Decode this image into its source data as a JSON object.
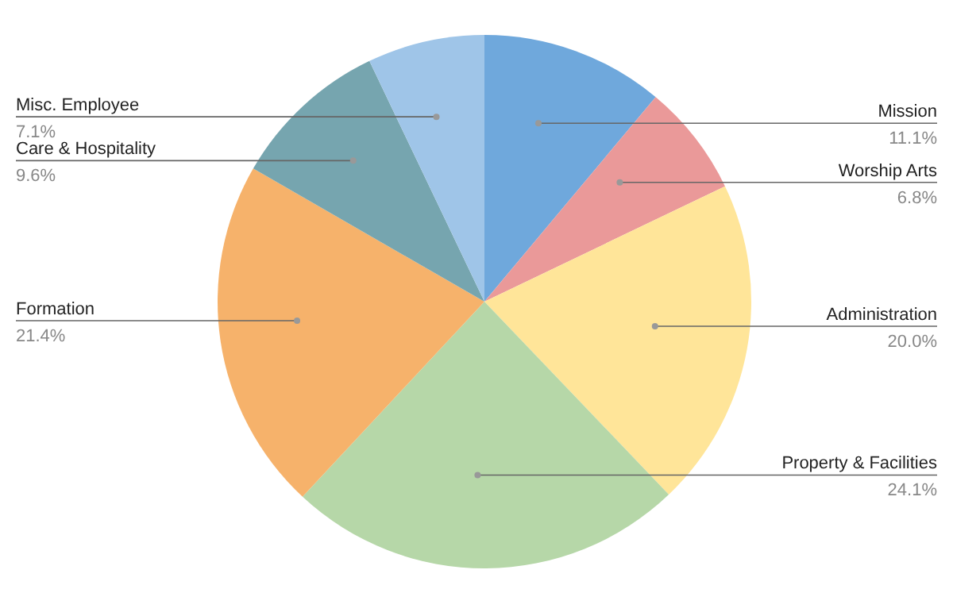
{
  "chart_data": {
    "type": "pie",
    "categories": [
      "Mission",
      "Worship Arts",
      "Administration",
      "Property & Facilities",
      "Formation",
      "Care & Hospitality",
      "Misc. Employee"
    ],
    "values": [
      11.1,
      6.8,
      20.0,
      24.1,
      21.4,
      9.6,
      7.1
    ],
    "value_labels": [
      "11.1%",
      "6.8%",
      "20.0%",
      "24.1%",
      "21.4%",
      "9.6%",
      "7.1%"
    ],
    "colors": [
      "#6fa8dc",
      "#ea9999",
      "#ffe599",
      "#b6d7a8",
      "#f6b26b",
      "#76a5af",
      "#9fc5e8"
    ],
    "legend": false
  }
}
